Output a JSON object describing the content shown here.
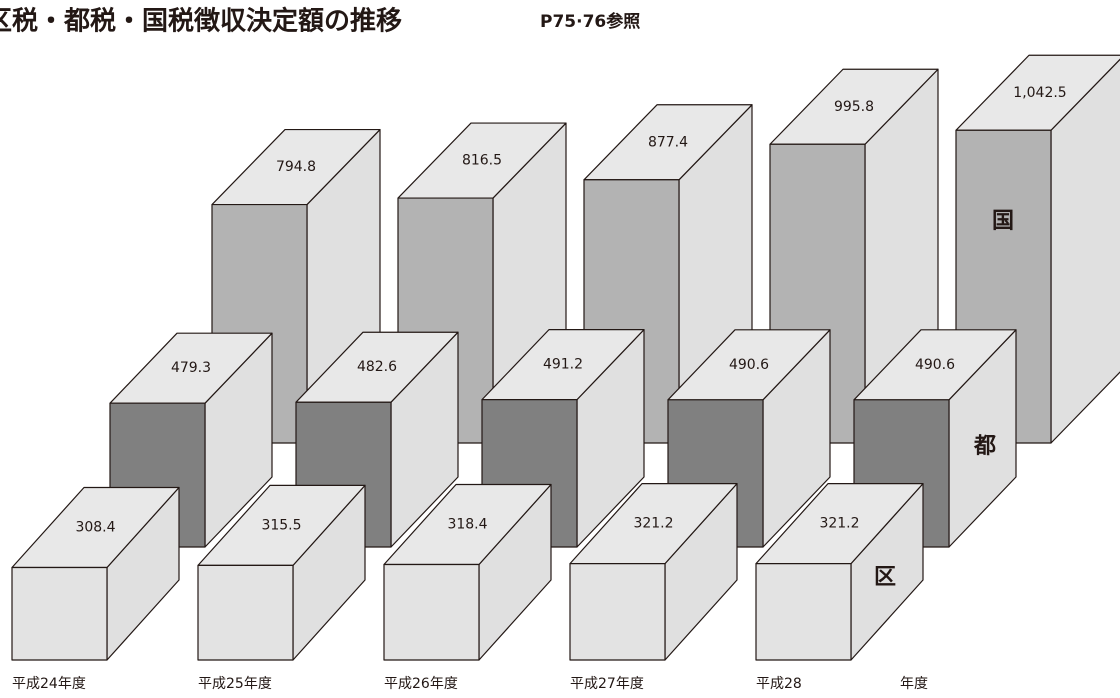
{
  "chart_data": {
    "type": "bar3d",
    "title": "区税・都税・国税徴収決定額の推移",
    "subtitle": "P75·76参照",
    "categories": [
      "平成24年度",
      "平成25年度",
      "平成26年度",
      "平成27年度",
      "平成28"
    ],
    "x_label": "年度",
    "series": [
      {
        "name": "区",
        "color": "#e3e3e3",
        "values": [
          308.4,
          315.5,
          318.4,
          321.2,
          321.2
        ]
      },
      {
        "name": "都",
        "color": "#808080",
        "values": [
          479.3,
          482.6,
          491.2,
          490.6,
          490.6
        ]
      },
      {
        "name": "国",
        "color": "#b3b3b3",
        "values": [
          794.8,
          816.5,
          877.4,
          995.8,
          1042.5
        ],
        "value_labels": [
          "794.8",
          "816.5",
          "877.4",
          "995.8",
          "1,042.5"
        ]
      }
    ]
  }
}
